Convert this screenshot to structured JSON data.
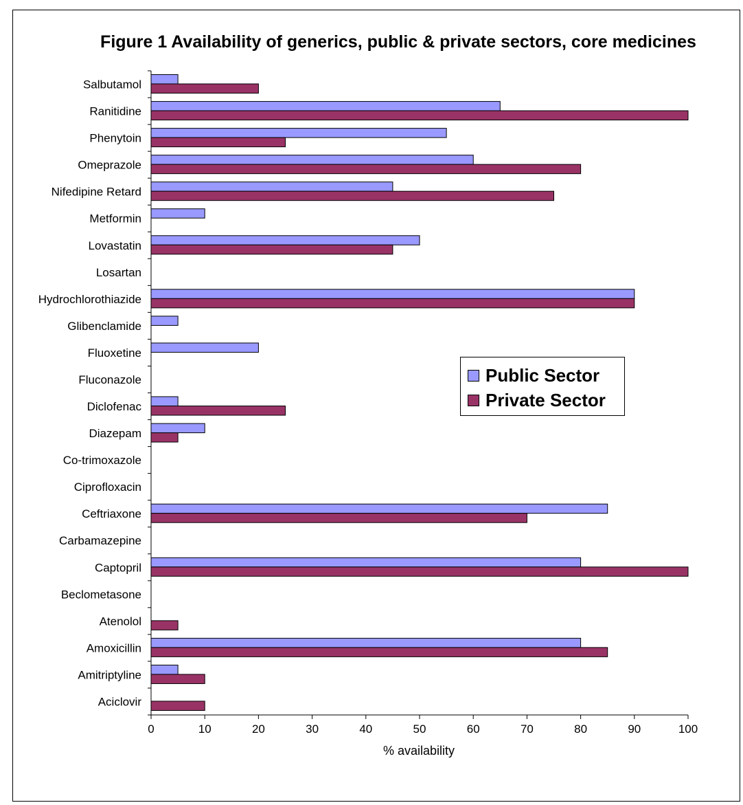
{
  "chart_data": {
    "type": "bar",
    "orientation": "horizontal",
    "title": "Figure 1 Availability of generics, public & private sectors, core medicines",
    "xlabel": "% availability",
    "ylabel": "",
    "xlim": [
      0,
      100
    ],
    "xticks": [
      0,
      10,
      20,
      30,
      40,
      50,
      60,
      70,
      80,
      90,
      100
    ],
    "grid": false,
    "legend_position": "right",
    "categories": [
      "Salbutamol",
      "Ranitidine",
      "Phenytoin",
      "Omeprazole",
      "Nifedipine Retard",
      "Metformin",
      "Lovastatin",
      "Losartan",
      "Hydrochlorothiazide",
      "Glibenclamide",
      "Fluoxetine",
      "Fluconazole",
      "Diclofenac",
      "Diazepam",
      "Co-trimoxazole",
      "Ciprofloxacin",
      "Ceftriaxone",
      "Carbamazepine",
      "Captopril",
      "Beclometasone",
      "Atenolol",
      "Amoxicillin",
      "Amitriptyline",
      "Aciclovir"
    ],
    "series": [
      {
        "name": "Public Sector",
        "color": "#9999ff",
        "values": [
          5,
          65,
          55,
          60,
          45,
          10,
          50,
          0,
          90,
          5,
          20,
          0,
          5,
          10,
          0,
          0,
          85,
          0,
          80,
          0,
          0,
          80,
          5,
          0
        ]
      },
      {
        "name": "Private Sector",
        "color": "#993366",
        "values": [
          20,
          100,
          25,
          80,
          75,
          0,
          45,
          0,
          90,
          0,
          0,
          0,
          25,
          5,
          0,
          0,
          70,
          0,
          100,
          0,
          5,
          85,
          10,
          10
        ]
      }
    ]
  }
}
